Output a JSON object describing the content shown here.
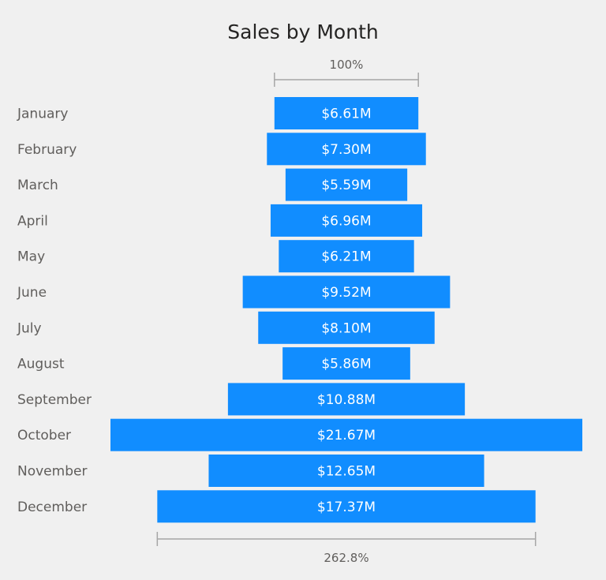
{
  "chart_data": {
    "type": "bar",
    "subtype": "funnel",
    "title": "Sales by Month",
    "categories": [
      "January",
      "February",
      "March",
      "April",
      "May",
      "June",
      "July",
      "August",
      "September",
      "October",
      "November",
      "December"
    ],
    "values": [
      6.61,
      7.3,
      5.59,
      6.96,
      6.21,
      9.52,
      8.1,
      5.86,
      10.88,
      21.67,
      12.65,
      17.37
    ],
    "value_unit": "$M",
    "data_labels": [
      "$6.61M",
      "$7.30M",
      "$5.59M",
      "$6.96M",
      "$6.21M",
      "$9.52M",
      "$8.10M",
      "$5.86M",
      "$10.88M",
      "$21.67M",
      "$12.65M",
      "$17.37M"
    ],
    "top_percent_label": "100%",
    "bottom_percent_label": "262.8%",
    "colors": {
      "bar": "#118dff",
      "background": "#f0f0f0",
      "bracket": "#a6a6a6"
    },
    "grid": false,
    "legend": "none"
  }
}
